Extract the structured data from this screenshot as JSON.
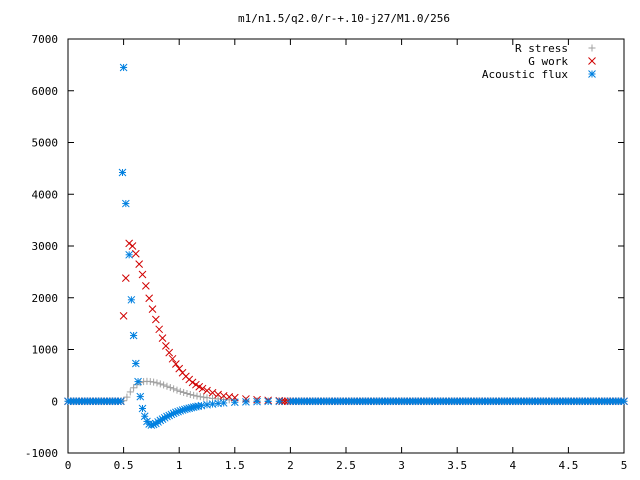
{
  "chart_data": {
    "type": "scatter",
    "title": "m1/n1.5/q2.0/r-+.10-j27/M1.0/256",
    "xlabel": "",
    "ylabel": "",
    "xlim": [
      0,
      5
    ],
    "ylim": [
      -1000,
      7000
    ],
    "xticks": [
      "0",
      "0.5",
      "1",
      "1.5",
      "2",
      "2.5",
      "3",
      "3.5",
      "4",
      "4.5",
      "5"
    ],
    "yticks": [
      "-1000",
      "0",
      "1000",
      "2000",
      "3000",
      "4000",
      "5000",
      "6000",
      "7000"
    ],
    "grid": false,
    "legend_position": "top-right",
    "series": [
      {
        "name": "R stress",
        "marker": "plus",
        "color": "#a0a0a0",
        "x": [
          0.5,
          0.53,
          0.56,
          0.59,
          0.62,
          0.65,
          0.68,
          0.71,
          0.74,
          0.77,
          0.8,
          0.83,
          0.86,
          0.89,
          0.92,
          0.95,
          0.98,
          1.01,
          1.04,
          1.07,
          1.1,
          1.13,
          1.16,
          1.19,
          1.22,
          1.25,
          1.3,
          1.35,
          1.4,
          1.45,
          1.5,
          1.6,
          1.7,
          1.8,
          1.9
        ],
        "y": [
          10,
          80,
          180,
          260,
          320,
          360,
          380,
          385,
          380,
          370,
          355,
          335,
          315,
          290,
          265,
          240,
          215,
          190,
          170,
          150,
          130,
          115,
          100,
          88,
          78,
          68,
          55,
          45,
          35,
          28,
          20,
          12,
          8,
          5,
          2
        ]
      },
      {
        "name": "G work",
        "marker": "cross",
        "color": "#d00000",
        "x": [
          0.5,
          0.52,
          0.55,
          0.58,
          0.61,
          0.64,
          0.67,
          0.7,
          0.73,
          0.76,
          0.79,
          0.82,
          0.85,
          0.88,
          0.91,
          0.94,
          0.97,
          1.0,
          1.03,
          1.06,
          1.09,
          1.12,
          1.15,
          1.18,
          1.21,
          1.25,
          1.3,
          1.35,
          1.4,
          1.45,
          1.5,
          1.6,
          1.7,
          1.8,
          1.9
        ],
        "y": [
          1650,
          2380,
          3050,
          3000,
          2850,
          2650,
          2450,
          2230,
          1990,
          1780,
          1580,
          1390,
          1220,
          1070,
          940,
          820,
          720,
          630,
          550,
          480,
          420,
          365,
          320,
          280,
          245,
          205,
          165,
          130,
          105,
          85,
          70,
          45,
          30,
          18,
          10
        ]
      },
      {
        "name": "Acoustic flux",
        "marker": "star",
        "color": "#0080e0",
        "x": [
          0.49,
          0.5,
          0.52,
          0.55,
          0.57,
          0.59,
          0.61,
          0.63,
          0.65,
          0.67,
          0.69,
          0.71,
          0.73,
          0.75,
          0.77,
          0.79,
          0.81,
          0.83,
          0.85,
          0.87,
          0.89,
          0.91,
          0.93,
          0.95,
          0.97,
          0.99,
          1.01,
          1.03,
          1.05,
          1.07,
          1.09,
          1.11,
          1.13,
          1.15,
          1.17,
          1.2,
          1.25,
          1.3,
          1.35,
          1.4,
          1.5,
          1.6,
          1.7,
          1.8,
          1.9,
          2.0
        ],
        "y": [
          4420,
          6450,
          3820,
          2830,
          1960,
          1270,
          730,
          380,
          90,
          -140,
          -290,
          -390,
          -440,
          -460,
          -450,
          -430,
          -400,
          -370,
          -345,
          -320,
          -295,
          -275,
          -255,
          -235,
          -215,
          -200,
          -185,
          -170,
          -158,
          -146,
          -135,
          -124,
          -114,
          -105,
          -96,
          -84,
          -68,
          -54,
          -42,
          -33,
          -20,
          -12,
          -7,
          -4,
          -2,
          -1
        ]
      }
    ]
  }
}
